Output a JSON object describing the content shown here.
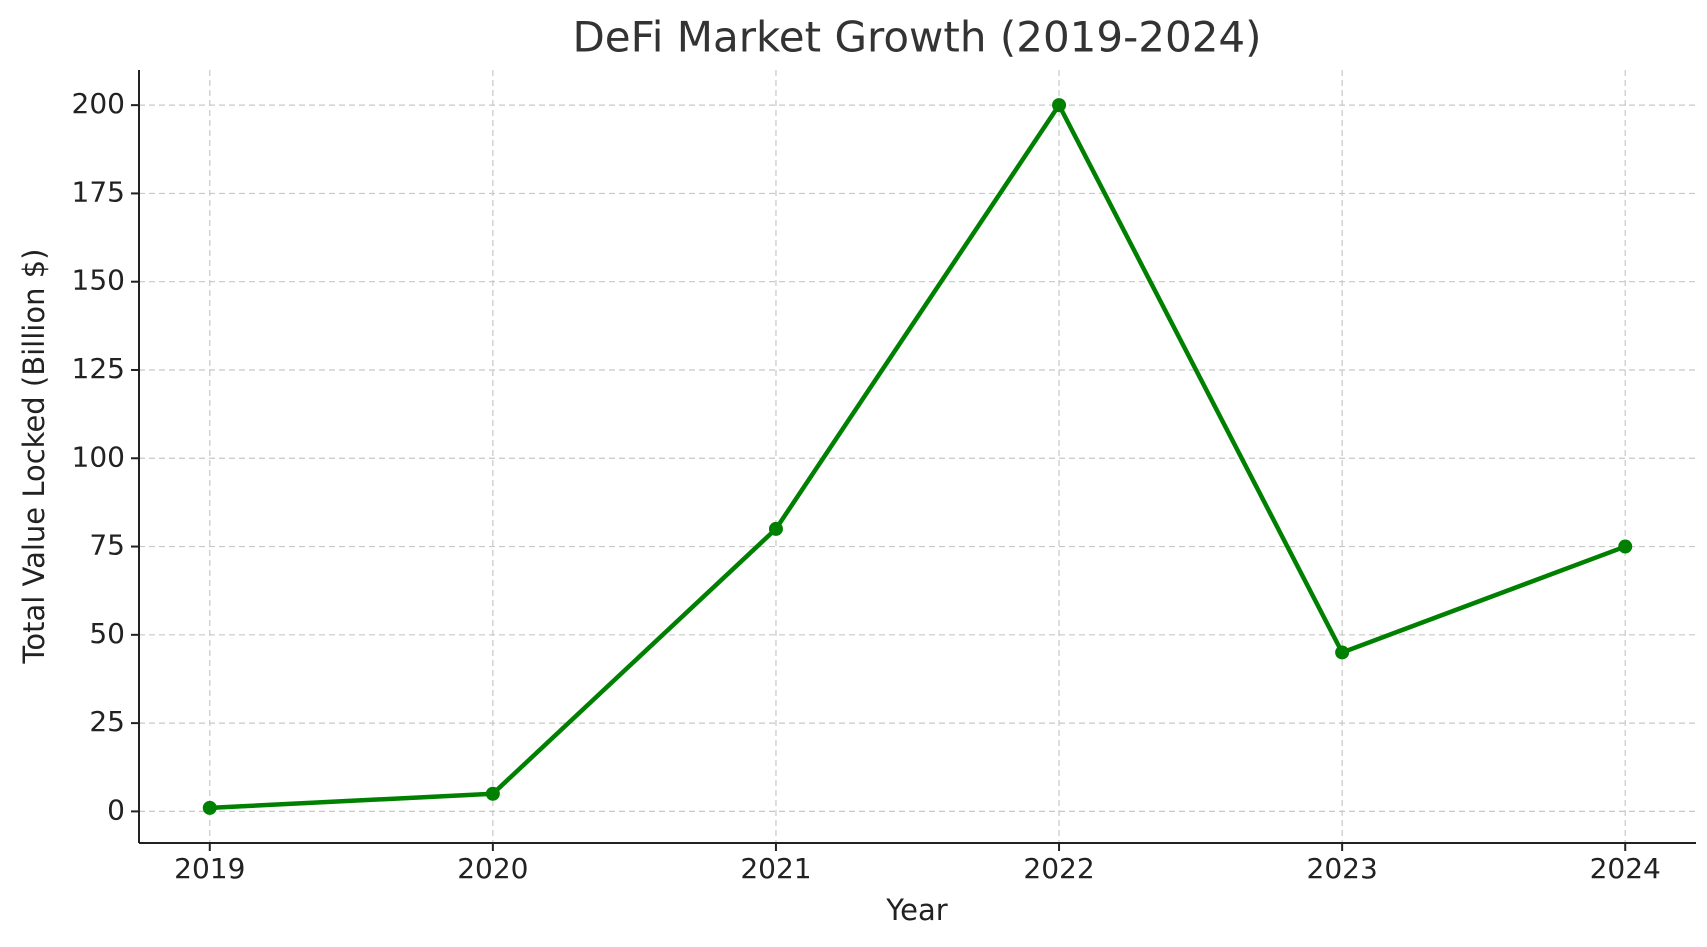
{
  "chart_data": {
    "type": "line",
    "title": "DeFi Market Growth (2019-2024)",
    "x_label": "Year",
    "y_label": "Total Value Locked (Billion $)",
    "x": [
      2019,
      2020,
      2021,
      2022,
      2023,
      2024
    ],
    "series": [
      {
        "color": "#008000",
        "values": [
          1,
          5,
          80,
          200,
          45,
          75
        ]
      }
    ],
    "xlim": [
      2018.75,
      2024.25
    ],
    "xticks": [
      2019,
      2020,
      2021,
      2022,
      2023,
      2024
    ],
    "ylim": [
      -8.95,
      209.95
    ],
    "yticks": [
      0,
      25,
      50,
      75,
      100,
      125,
      150,
      175,
      200
    ],
    "grid": true
  }
}
